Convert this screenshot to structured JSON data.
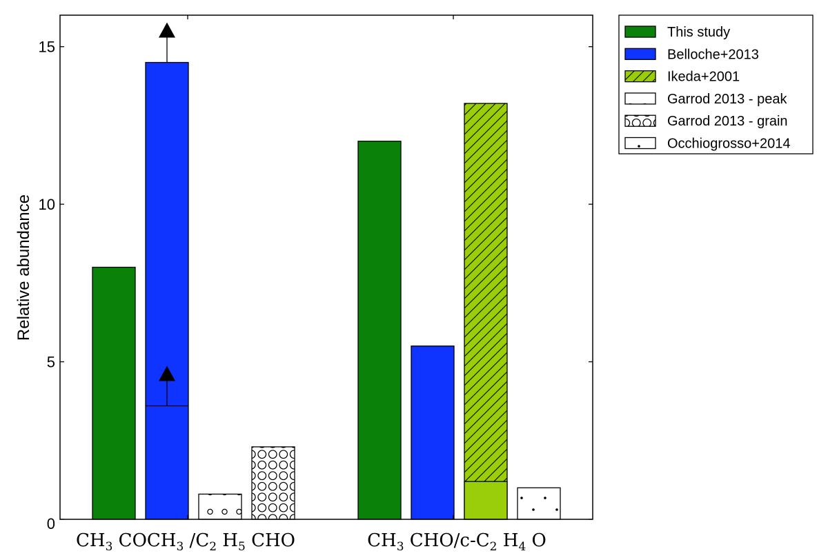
{
  "chart_data": {
    "type": "bar",
    "ylabel": "Relative abundance",
    "ylim": [
      0,
      16
    ],
    "yticks": [
      0,
      5,
      10,
      15
    ],
    "ytick_labels": [
      "0",
      "5",
      "10",
      "15"
    ],
    "grid": false,
    "legend_position": "outside top-right",
    "categories": [
      {
        "name": "CH3COCH3/C2H5CHO",
        "label_parts": [
          {
            "t": "CH"
          },
          {
            "t": "3",
            "sub": true
          },
          {
            "t": " COCH"
          },
          {
            "t": "3",
            "sub": true
          },
          {
            "t": " /C"
          },
          {
            "t": "2",
            "sub": true
          },
          {
            "t": " H"
          },
          {
            "t": "5",
            "sub": true
          },
          {
            "t": " CHO"
          }
        ]
      },
      {
        "name": "CH3CHO/c-C2H4O",
        "label_parts": [
          {
            "t": "CH"
          },
          {
            "t": "3",
            "sub": true
          },
          {
            "t": " CHO/c-C"
          },
          {
            "t": "2",
            "sub": true
          },
          {
            "t": " H"
          },
          {
            "t": "4",
            "sub": true
          },
          {
            "t": " O"
          }
        ]
      }
    ],
    "series": [
      {
        "name": "This study",
        "color": "#0a820a",
        "pattern": "solid",
        "bars": [
          {
            "category": 0,
            "value": 8.0
          },
          {
            "category": 1,
            "value": 12.0
          }
        ]
      },
      {
        "name": "Belloche+2013",
        "color": "#1034ff",
        "pattern": "solid",
        "bars": [
          {
            "category": 0,
            "value": 14.5,
            "inner_value": 3.6,
            "lower_limit_arrows": true
          },
          {
            "category": 1,
            "value": 5.5
          }
        ]
      },
      {
        "name": "Ikeda+2001",
        "color": "#9acd0a",
        "pattern": "hatch",
        "bars": [
          {
            "category": 1,
            "value": 13.2,
            "solid_base": 1.2
          }
        ]
      },
      {
        "name": "Garrod 2013 - peak",
        "color": "#ffffff",
        "pattern": "small-circles",
        "bars": [
          {
            "category": 0,
            "value": 0.8
          }
        ]
      },
      {
        "name": "Garrod 2013 - grain",
        "color": "#ffffff",
        "pattern": "large-circles",
        "bars": [
          {
            "category": 0,
            "value": 2.3
          }
        ]
      },
      {
        "name": "Occhiogrosso+2014",
        "color": "#ffffff",
        "pattern": "dots",
        "bars": [
          {
            "category": 1,
            "value": 1.0
          }
        ]
      }
    ]
  }
}
